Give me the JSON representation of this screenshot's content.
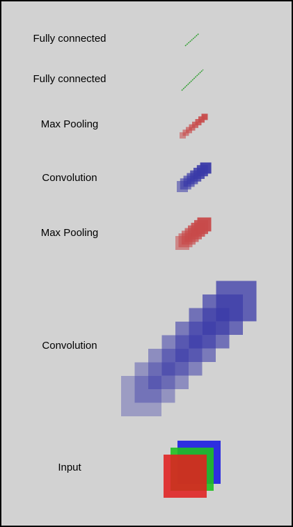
{
  "layers": [
    {
      "label": "Fully connected",
      "type": "fc"
    },
    {
      "label": "Fully connected",
      "type": "fc"
    },
    {
      "label": "Max Pooling",
      "type": "pool"
    },
    {
      "label": "Convolution",
      "type": "conv"
    },
    {
      "label": "Max Pooling",
      "type": "pool"
    },
    {
      "label": "Convolution",
      "type": "conv"
    },
    {
      "label": "Input",
      "type": "input"
    }
  ],
  "colors": {
    "background": "#d2d2d2",
    "border": "#000000",
    "fc": "#2f9e2f",
    "pool": "#c84a4a",
    "conv": "#3a3aa8",
    "input_red": "#e02020",
    "input_green": "#20c020",
    "input_blue": "#2020e0"
  }
}
